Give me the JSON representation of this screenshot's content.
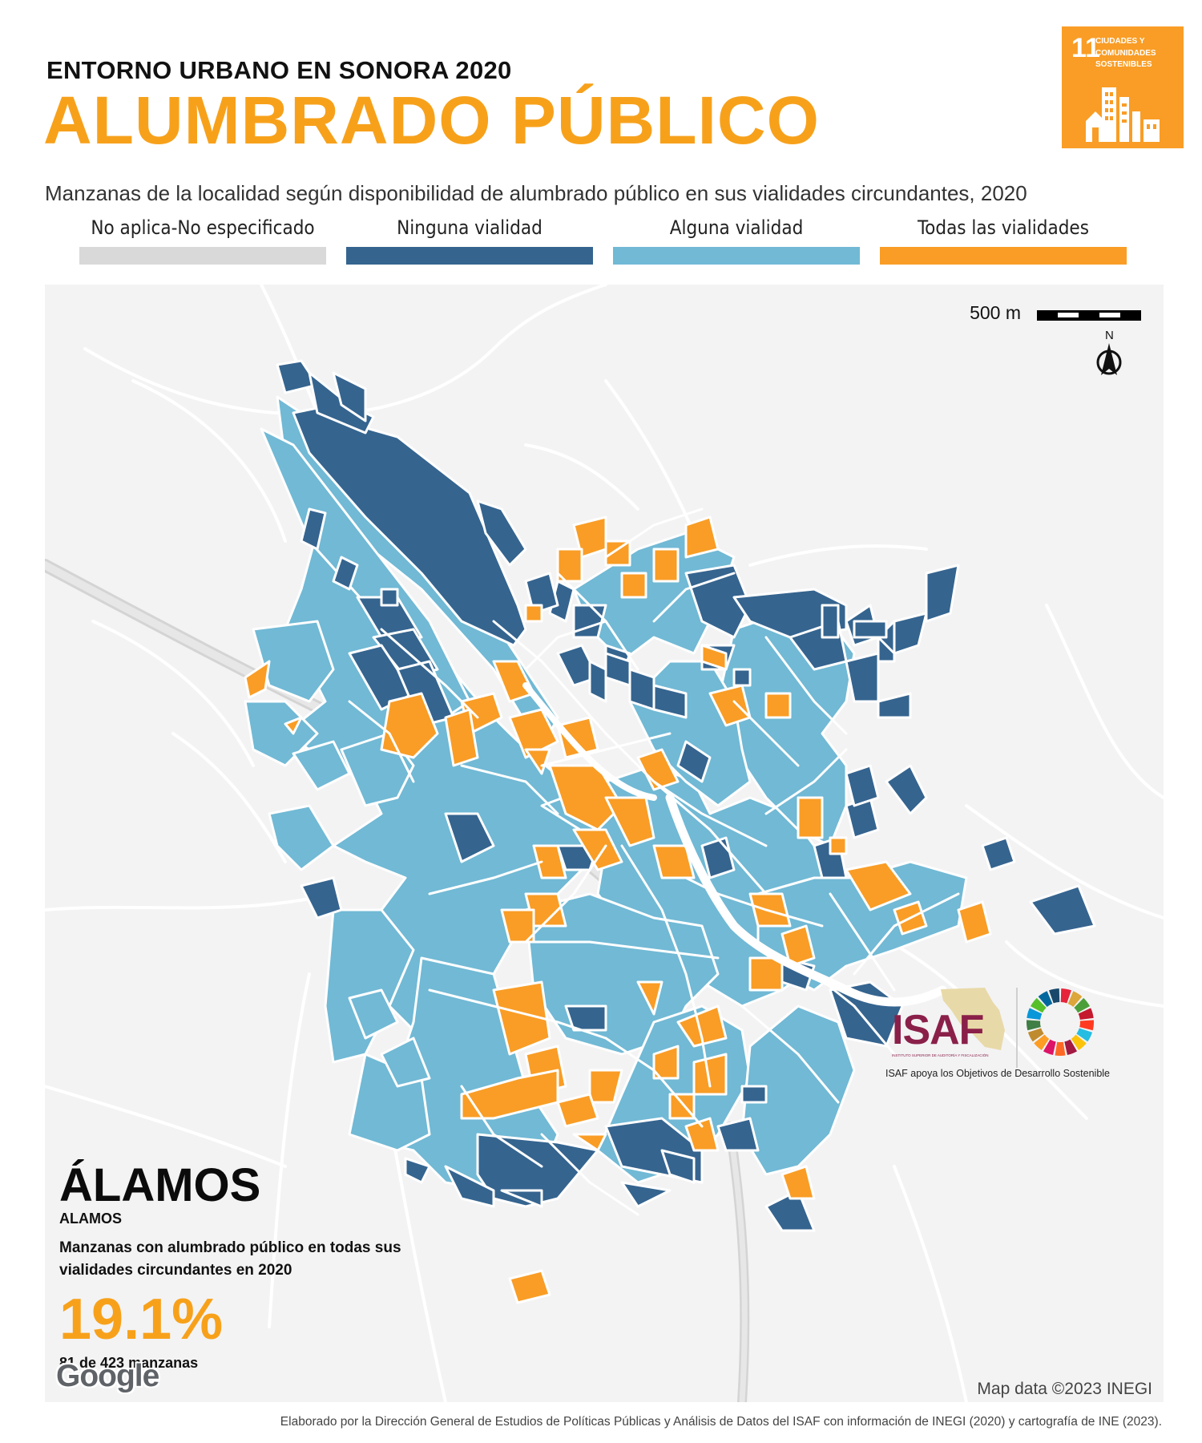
{
  "header": {
    "pre_title": "ENTORNO URBANO EN SONORA 2020",
    "title": "ALUMBRADO PÚBLICO",
    "subtitle": "Manzanas de la localidad según disponibilidad de alumbrado público en sus vialidades circundantes, 2020"
  },
  "sdg_badge": {
    "number": "11",
    "text": "CIUDADES Y COMUNIDADES SOSTENIBLES",
    "color": "#f99d26"
  },
  "legend": [
    {
      "label": "No aplica-No especificado",
      "color": "#d9d9d9"
    },
    {
      "label": "Ninguna vialidad",
      "color": "#35648f"
    },
    {
      "label": "Alguna vialidad",
      "color": "#71b9d5"
    },
    {
      "label": "Todas las vialidades",
      "color": "#f99d26"
    }
  ],
  "map": {
    "scale_label": "500 m",
    "north_label": "N",
    "google_label": "Google",
    "attribution": "Map data ©2023 INEGI",
    "icons": [
      "north-arrow-icon",
      "scale-bar-icon",
      "google-logo-icon"
    ]
  },
  "locality": {
    "name": "ÁLAMOS",
    "code": "ALAMOS",
    "caption": "Manzanas con alumbrado público en todas sus vialidades circundantes en 2020",
    "percentage": "19.1%",
    "count_text": "81 de 423 manzanas",
    "percentage_value": 19.1,
    "count": 81,
    "total": 423
  },
  "logos": {
    "isaf_name": "ISAF",
    "isaf_small": "INSTITUTO SUPERIOR DE AUDITORÍA Y FISCALIZACIÓN",
    "caption": "ISAF apoya los Objetivos de Desarrollo Sostenible",
    "isaf_color": "#8a2049",
    "sdg_wheel_colors": [
      "#e5243b",
      "#dda63a",
      "#4c9f38",
      "#c5192d",
      "#ff3a21",
      "#26bde2",
      "#fcc30b",
      "#a21942",
      "#fd6925",
      "#dd1367",
      "#fd9d24",
      "#bf8b2e",
      "#3f7e44",
      "#0a97d9",
      "#56c02b",
      "#00689d",
      "#19486a"
    ]
  },
  "footer": "Elaborado por la Dirección General de Estudios de Políticas Públicas y Análisis de Datos del ISAF con información de INEGI (2020) y cartografía de INE (2023)."
}
